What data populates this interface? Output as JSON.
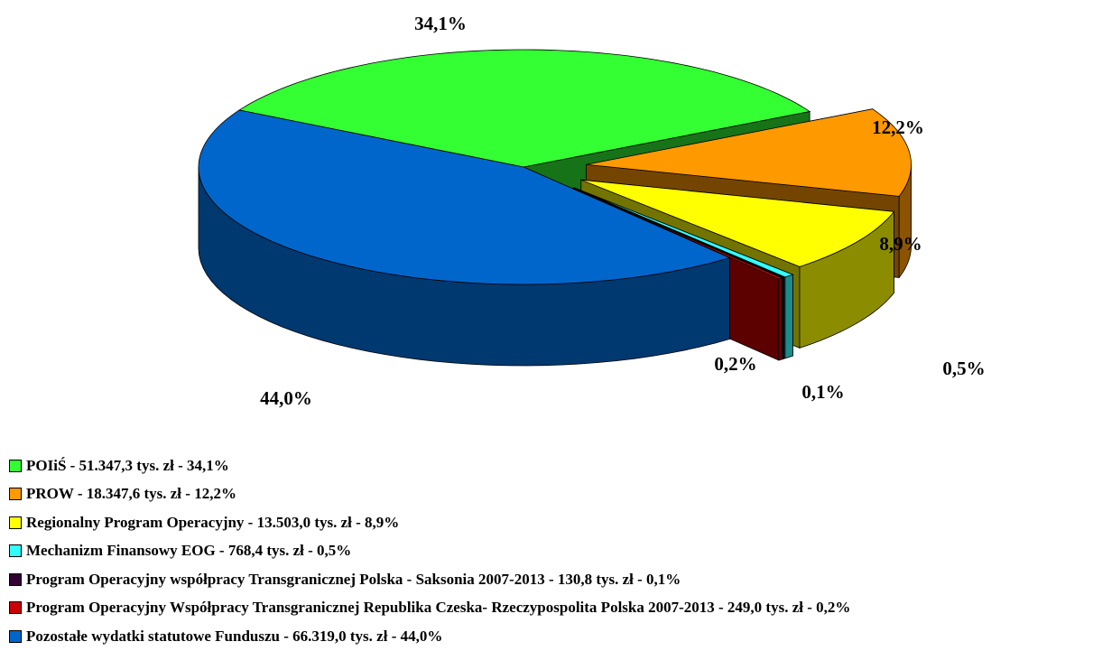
{
  "chart_data": {
    "type": "pie",
    "categories": [
      "POIiŚ - 51.347,3  tys. zł  - 34,1%",
      "PROW - 18.347,6 tys. zł - 12,2%",
      "Regionalny Program Operacyjny - 13.503,0 tys. zł - 8,9%",
      "Mechanizm Finansowy EOG - 768,4 tys. zł  - 0,5%",
      "Program Operacyjny współpracy Transgranicznej Polska - Saksonia 2007-2013 - 130,8 tys. zł - 0,1%",
      "Program Operacyjny Współpracy Transgranicznej Republika Czeska- Rzeczypospolita Polska 2007-2013 - 249,0 tys. zł - 0,2%",
      "Pozostałe wydatki statutowe Funduszu - 66.319,0 tys. zł - 44,0%"
    ],
    "values": [
      34.1,
      12.2,
      8.9,
      0.5,
      0.1,
      0.2,
      44.0
    ],
    "value_labels": [
      "34,1%",
      "12,2%",
      "8,9%",
      "0,5%",
      "0,1%",
      "0,2%",
      "44,0%"
    ],
    "colors": [
      "#33ff33",
      "#ff9900",
      "#ffff00",
      "#33ffff",
      "#330033",
      "#cc0000",
      "#0066cc"
    ],
    "legend": "bottom-left"
  }
}
